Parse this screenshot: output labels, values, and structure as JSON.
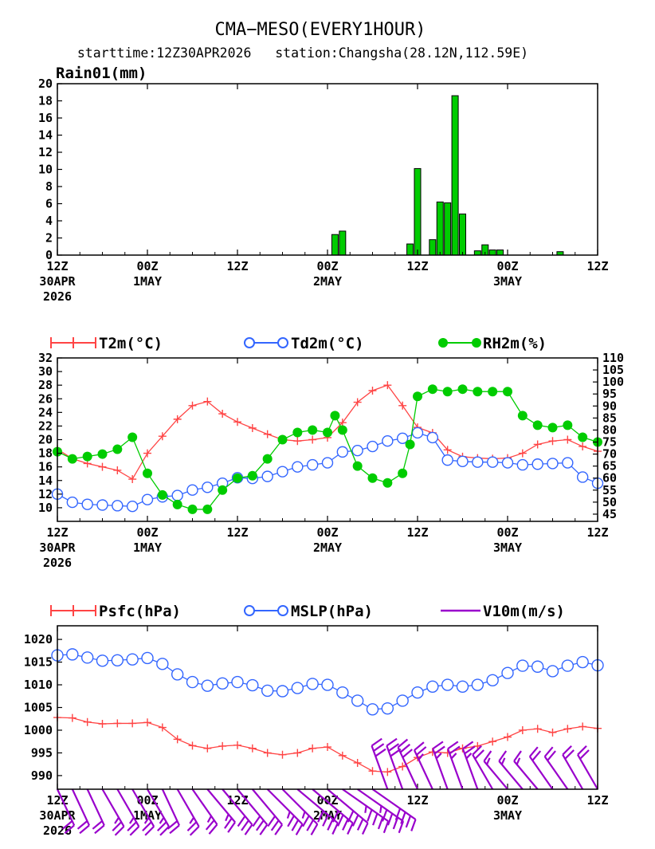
{
  "header": {
    "title": "CMA−MESO(EVERY1HOUR)",
    "subtitle": "starttime:12Z30APR2026   station:Changsha(28.12N,112.59E)"
  },
  "x_axis": {
    "hours_start": 0,
    "hours_end": 72,
    "ticks": [
      {
        "hour": 0,
        "l1": "12Z",
        "l2": "30APR",
        "l3": "2026"
      },
      {
        "hour": 12,
        "l1": "00Z",
        "l2": "1MAY",
        "l3": ""
      },
      {
        "hour": 24,
        "l1": "12Z",
        "l2": "",
        "l3": ""
      },
      {
        "hour": 36,
        "l1": "00Z",
        "l2": "2MAY",
        "l3": ""
      },
      {
        "hour": 48,
        "l1": "12Z",
        "l2": "",
        "l3": ""
      },
      {
        "hour": 60,
        "l1": "00Z",
        "l2": "3MAY",
        "l3": ""
      },
      {
        "hour": 72,
        "l1": "12Z",
        "l2": "",
        "l3": ""
      }
    ]
  },
  "colors": {
    "rain": "#00cc00",
    "t2m": "#ff4444",
    "td2m": "#3366ff",
    "rh2m": "#00cc00",
    "psfc": "#ff4444",
    "mslp": "#3366ff",
    "wind": "#9900cc"
  },
  "chart_data": [
    {
      "type": "bar",
      "ylabel": "Rain01(mm)",
      "ylim": [
        0,
        20
      ],
      "yticks": [
        0,
        2,
        4,
        6,
        8,
        10,
        12,
        14,
        16,
        18,
        20
      ],
      "x": [
        37,
        38,
        47,
        48,
        50,
        51,
        52,
        53,
        54,
        56,
        57,
        58,
        59,
        67
      ],
      "values": [
        2.4,
        2.8,
        1.3,
        10.1,
        1.8,
        6.2,
        6.1,
        18.6,
        4.8,
        0.5,
        1.2,
        0.6,
        0.6,
        0.4
      ]
    },
    {
      "type": "line",
      "ylim_left": [
        8,
        32
      ],
      "yticks_left": [
        10,
        12,
        14,
        16,
        18,
        20,
        22,
        24,
        26,
        28,
        30,
        32
      ],
      "ylim_right": [
        42,
        110
      ],
      "yticks_right": [
        45,
        50,
        55,
        60,
        65,
        70,
        75,
        80,
        85,
        90,
        95,
        100,
        105,
        110
      ],
      "series": [
        {
          "name": "T2m(°C)",
          "axis": "left",
          "x": [
            0,
            2,
            4,
            6,
            8,
            10,
            12,
            14,
            16,
            18,
            20,
            22,
            24,
            26,
            28,
            30,
            32,
            34,
            36,
            38,
            40,
            42,
            44,
            46,
            48,
            50,
            52,
            54,
            56,
            58,
            60,
            62,
            64,
            66,
            68,
            70,
            72
          ],
          "values": [
            18.6,
            17.2,
            16.5,
            16.0,
            15.5,
            14.2,
            18.0,
            20.5,
            23.0,
            25.0,
            25.6,
            23.8,
            22.6,
            21.7,
            20.8,
            20.0,
            19.8,
            20.0,
            20.3,
            22.5,
            25.5,
            27.2,
            28.0,
            25.0,
            21.8,
            21.0,
            18.5,
            17.5,
            17.3,
            17.2,
            17.3,
            18.0,
            19.3,
            19.8,
            20.0,
            19.0,
            18.3
          ]
        },
        {
          "name": "Td2m(°C)",
          "axis": "left",
          "x": [
            0,
            2,
            4,
            6,
            8,
            10,
            12,
            14,
            16,
            18,
            20,
            22,
            24,
            26,
            28,
            30,
            32,
            34,
            36,
            38,
            40,
            42,
            44,
            46,
            48,
            50,
            52,
            54,
            56,
            58,
            60,
            62,
            64,
            66,
            68,
            70,
            72
          ],
          "values": [
            12.0,
            10.8,
            10.5,
            10.4,
            10.3,
            10.2,
            11.2,
            11.6,
            11.8,
            12.6,
            13.0,
            13.6,
            14.4,
            14.3,
            14.6,
            15.3,
            16.0,
            16.3,
            16.6,
            18.2,
            18.4,
            19.0,
            19.8,
            20.2,
            21.0,
            20.3,
            17.0,
            16.8,
            16.7,
            16.7,
            16.6,
            16.3,
            16.4,
            16.5,
            16.6,
            14.5,
            13.6
          ]
        },
        {
          "name": "RH2m(%)",
          "axis": "right",
          "x": [
            0,
            2,
            4,
            6,
            8,
            10,
            12,
            14,
            16,
            18,
            20,
            22,
            24,
            26,
            28,
            30,
            32,
            34,
            36,
            37,
            38,
            40,
            42,
            44,
            46,
            47,
            48,
            50,
            52,
            54,
            56,
            58,
            60,
            62,
            64,
            66,
            68,
            70,
            72
          ],
          "values": [
            71,
            68,
            69,
            70,
            72,
            77,
            62,
            53,
            49,
            47,
            47,
            55,
            60,
            61,
            68,
            76,
            79,
            80,
            79,
            86,
            80,
            65,
            60,
            58,
            62,
            74,
            94,
            97,
            96,
            97,
            96,
            96,
            96,
            86,
            82,
            81,
            82,
            77,
            75
          ]
        }
      ]
    },
    {
      "type": "line",
      "ylim": [
        987,
        1023
      ],
      "yticks": [
        990,
        995,
        1000,
        1005,
        1010,
        1015,
        1020
      ],
      "series": [
        {
          "name": "Psfc(hPa)",
          "x": [
            0,
            2,
            4,
            6,
            8,
            10,
            12,
            14,
            16,
            18,
            20,
            22,
            24,
            26,
            28,
            30,
            32,
            34,
            36,
            38,
            40,
            42,
            44,
            46,
            48,
            50,
            52,
            54,
            56,
            58,
            60,
            62,
            64,
            66,
            68,
            70,
            72
          ],
          "values": [
            1002.8,
            1002.7,
            1001.8,
            1001.4,
            1001.5,
            1001.5,
            1001.7,
            1000.6,
            998.0,
            996.6,
            996.0,
            996.5,
            996.7,
            996.0,
            995.0,
            994.6,
            995.0,
            996.0,
            996.3,
            994.4,
            992.8,
            991.0,
            990.8,
            992.0,
            994.0,
            995.2,
            995.0,
            996.0,
            996.5,
            997.5,
            998.5,
            1000.0,
            1000.3,
            999.5,
            1000.3,
            1000.8,
            1000.4
          ]
        },
        {
          "name": "MSLP(hPa)",
          "x": [
            0,
            2,
            4,
            6,
            8,
            10,
            12,
            14,
            16,
            18,
            20,
            22,
            24,
            26,
            28,
            30,
            32,
            34,
            36,
            38,
            40,
            42,
            44,
            46,
            48,
            50,
            52,
            54,
            56,
            58,
            60,
            62,
            64,
            66,
            68,
            70,
            72
          ],
          "values": [
            1016.5,
            1016.7,
            1016.0,
            1015.3,
            1015.4,
            1015.6,
            1015.9,
            1014.6,
            1012.3,
            1010.6,
            1009.8,
            1010.3,
            1010.6,
            1009.9,
            1008.7,
            1008.6,
            1009.3,
            1010.2,
            1010.0,
            1008.3,
            1006.5,
            1004.6,
            1004.8,
            1006.5,
            1008.3,
            1009.6,
            1010.0,
            1009.6,
            1010.0,
            1011.0,
            1012.6,
            1014.2,
            1014.0,
            1013.0,
            1014.2,
            1015.0,
            1014.3
          ]
        },
        {
          "name": "V10m(m/s)",
          "type": "wind_barbs",
          "x": [
            0,
            2,
            4,
            6,
            8,
            10,
            12,
            14,
            16,
            18,
            20,
            22,
            24,
            26,
            28,
            30,
            32,
            34,
            36,
            38,
            40,
            42,
            44,
            46,
            48,
            50,
            52,
            54,
            56,
            58,
            60,
            62,
            64,
            66,
            68,
            70,
            72
          ],
          "speed": [
            4,
            4,
            4,
            5,
            5,
            5,
            5,
            4,
            5,
            5,
            5,
            6,
            6,
            6,
            7,
            7,
            8,
            8,
            8,
            9,
            9,
            8,
            6,
            6,
            6,
            5,
            5,
            5,
            5,
            4,
            3,
            3,
            3,
            4,
            4,
            4,
            4
          ],
          "direction": [
            25,
            25,
            25,
            30,
            30,
            30,
            30,
            25,
            30,
            35,
            40,
            40,
            40,
            40,
            45,
            45,
            50,
            50,
            50,
            55,
            55,
            55,
            200,
            200,
            205,
            205,
            200,
            200,
            200,
            210,
            220,
            220,
            220,
            215,
            215,
            210,
            210
          ]
        }
      ]
    }
  ]
}
